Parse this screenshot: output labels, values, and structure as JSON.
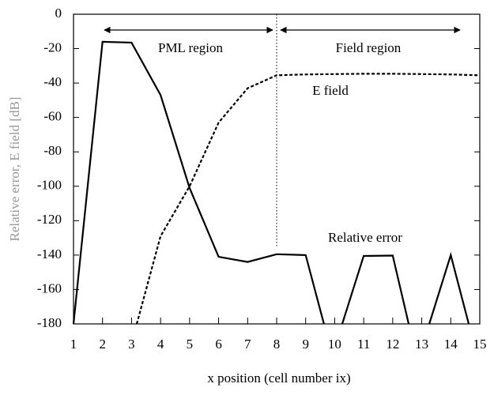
{
  "chart_data": {
    "type": "line",
    "xlabel": "x position (cell number ix)",
    "ylabel": "Relative error, E field [dB]",
    "xlim": [
      1,
      15
    ],
    "xticks": [
      1,
      2,
      3,
      4,
      5,
      6,
      7,
      8,
      9,
      10,
      11,
      12,
      13,
      14,
      15
    ],
    "ylim": [
      -180,
      0
    ],
    "yticks": [
      0,
      -20,
      -40,
      -60,
      -80,
      -100,
      -120,
      -140,
      -160,
      -180
    ],
    "annotations": [
      "PML region",
      "Field region",
      "E field",
      "Relative error"
    ],
    "series": [
      {
        "name": "Relative error",
        "color": "#000000",
        "dash": false,
        "x": [
          1,
          2,
          3,
          4,
          5,
          6,
          7,
          8,
          9,
          9.63,
          null,
          10.26,
          11,
          12,
          12.55,
          null,
          13.26,
          14,
          14.62
        ],
        "values": [
          -180,
          -16,
          -16.5,
          -47,
          -101,
          -141,
          -144,
          -139.5,
          -140,
          -180,
          null,
          -180,
          -140.5,
          -140.3,
          -180,
          null,
          -180,
          -140,
          -180
        ]
      },
      {
        "name": "E field",
        "color": "#000000",
        "dash": true,
        "x": [
          3.18,
          4,
          5,
          6,
          7,
          8,
          9,
          10,
          11,
          12,
          13,
          14,
          15
        ],
        "values": [
          -180,
          -129,
          -100,
          -63,
          -43,
          -35.5,
          -35,
          -34.8,
          -34.6,
          -34.6,
          -34.8,
          -35,
          -35.5
        ]
      }
    ]
  }
}
